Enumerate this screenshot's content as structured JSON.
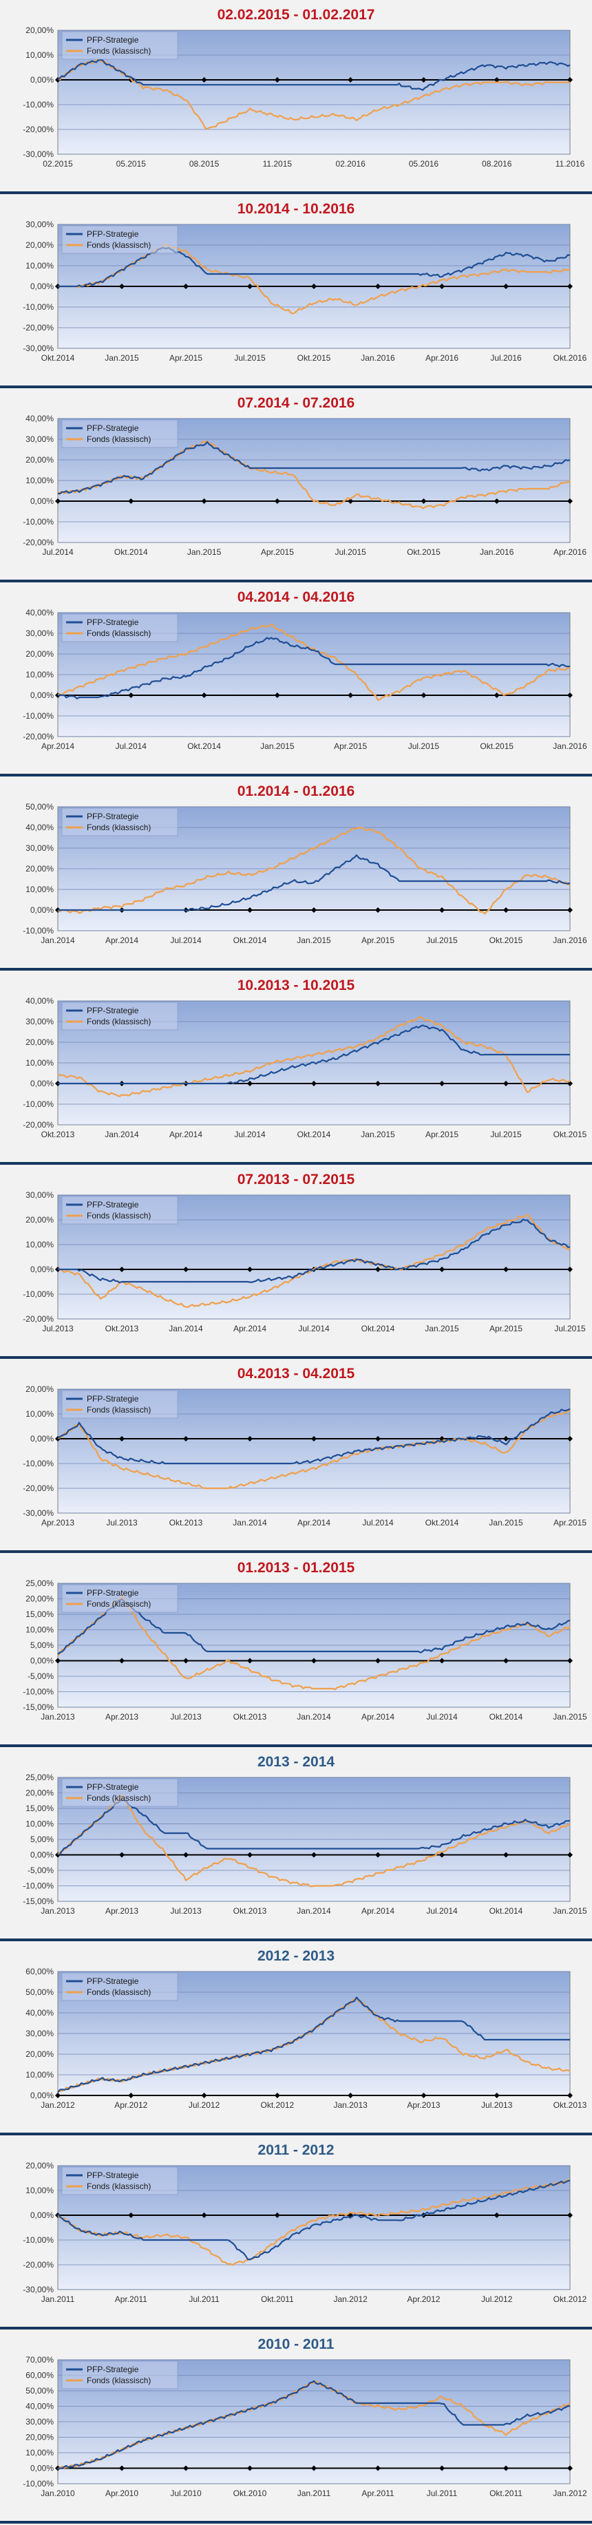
{
  "colors": {
    "strategy": "#1f4e94",
    "fund": "#f0a04b",
    "title_red": "#c0171e",
    "title_blue": "#2e5a88",
    "plot_top": "#8fa8d8",
    "plot_bottom": "#e9eef9",
    "divider": "#17375e"
  },
  "legend": {
    "strategy": "PFP-Strategie",
    "fund": "Fonds (klassisch)"
  },
  "chart_data": [
    {
      "type": "line",
      "title": "02.02.2015 - 01.02.2017",
      "title_color": "red",
      "ylim": [
        -30,
        20
      ],
      "yticks": [
        "20,00%",
        "10,00%",
        "0,00%",
        "-10,00%",
        "-20,00%",
        "-30,00%"
      ],
      "xticks": [
        "02.2015",
        "05.2015",
        "08.2015",
        "11.2015",
        "02.2016",
        "05.2016",
        "08.2016",
        "11.2016"
      ],
      "series": [
        {
          "name": "PFP-Strategie",
          "values": [
            0,
            6,
            8,
            3,
            -2,
            -2,
            -2,
            -2,
            -2,
            -2,
            -2,
            -2,
            -2,
            -2,
            -2,
            -2,
            -2,
            -4,
            0,
            3,
            6,
            5,
            6,
            7,
            6
          ]
        },
        {
          "name": "Fonds (klassisch)",
          "values": [
            0,
            6,
            8,
            3,
            -3,
            -4,
            -8,
            -20,
            -16,
            -12,
            -14,
            -16,
            -15,
            -14,
            -16,
            -12,
            -10,
            -7,
            -4,
            -2,
            -1,
            -1,
            -2,
            -1,
            -1
          ]
        }
      ]
    },
    {
      "type": "line",
      "title": "10.2014 - 10.2016",
      "title_color": "red",
      "ylim": [
        -30,
        30
      ],
      "yticks": [
        "30,00%",
        "20,00%",
        "10,00%",
        "0,00%",
        "-10,00%",
        "-20,00%",
        "-30,00%"
      ],
      "xticks": [
        "Okt.2014",
        "Jan.2015",
        "Apr.2015",
        "Jul.2015",
        "Okt.2015",
        "Jan.2016",
        "Apr.2016",
        "Jul.2016",
        "Okt.2016"
      ],
      "series": [
        {
          "name": "PFP-Strategie",
          "values": [
            0,
            0,
            2,
            8,
            14,
            19,
            15,
            6,
            6,
            6,
            6,
            6,
            6,
            6,
            6,
            6,
            6,
            6,
            5,
            8,
            12,
            16,
            15,
            12,
            15
          ]
        },
        {
          "name": "Fonds (klassisch)",
          "values": [
            0,
            0,
            2,
            8,
            14,
            20,
            17,
            8,
            6,
            4,
            -8,
            -13,
            -8,
            -6,
            -9,
            -5,
            -2,
            0,
            3,
            5,
            6,
            8,
            7,
            7,
            8
          ]
        }
      ]
    },
    {
      "type": "line",
      "title": "07.2014 - 07.2016",
      "title_color": "red",
      "ylim": [
        -20,
        40
      ],
      "yticks": [
        "40,00%",
        "30,00%",
        "20,00%",
        "10,00%",
        "0,00%",
        "-10,00%",
        "-20,00%"
      ],
      "xticks": [
        "Jul.2014",
        "Okt.2014",
        "Jan.2015",
        "Apr.2015",
        "Jul.2015",
        "Okt.2015",
        "Jan.2016",
        "Apr.2016"
      ],
      "series": [
        {
          "name": "PFP-Strategie",
          "values": [
            4,
            5,
            8,
            12,
            11,
            18,
            25,
            28,
            22,
            16,
            16,
            16,
            16,
            16,
            16,
            16,
            16,
            16,
            16,
            16,
            15,
            17,
            16,
            17,
            20
          ]
        },
        {
          "name": "Fonds (klassisch)",
          "values": [
            4,
            5,
            8,
            12,
            11,
            18,
            25,
            29,
            22,
            16,
            14,
            13,
            0,
            -2,
            3,
            1,
            -1,
            -3,
            -2,
            2,
            3,
            5,
            6,
            6,
            10
          ]
        }
      ]
    },
    {
      "type": "line",
      "title": "04.2014 - 04.2016",
      "title_color": "red",
      "ylim": [
        -20,
        40
      ],
      "yticks": [
        "40,00%",
        "30,00%",
        "20,00%",
        "10,00%",
        "0,00%",
        "-10,00%",
        "-20,00%"
      ],
      "xticks": [
        "Apr.2014",
        "Jul.2014",
        "Okt.2014",
        "Jan.2015",
        "Apr.2015",
        "Jul.2015",
        "Okt.2015",
        "Jan.2016"
      ],
      "series": [
        {
          "name": "PFP-Strategie",
          "values": [
            0,
            -1,
            -1,
            2,
            5,
            8,
            9,
            14,
            18,
            24,
            28,
            24,
            22,
            15,
            15,
            15,
            15,
            15,
            15,
            15,
            15,
            15,
            15,
            15,
            14
          ]
        },
        {
          "name": "Fonds (klassisch)",
          "values": [
            0,
            4,
            8,
            12,
            15,
            18,
            20,
            24,
            28,
            32,
            34,
            28,
            22,
            18,
            10,
            -2,
            2,
            8,
            10,
            12,
            6,
            0,
            5,
            12,
            13
          ]
        }
      ]
    },
    {
      "type": "line",
      "title": "01.2014 - 01.2016",
      "title_color": "red",
      "ylim": [
        -10,
        50
      ],
      "yticks": [
        "50,00%",
        "40,00%",
        "30,00%",
        "20,00%",
        "10,00%",
        "0,00%",
        "-10,00%"
      ],
      "xticks": [
        "Jan.2014",
        "Apr.2014",
        "Jul.2014",
        "Okt.2014",
        "Jan.2015",
        "Apr.2015",
        "Jul.2015",
        "Okt.2015",
        "Jan.2016"
      ],
      "series": [
        {
          "name": "PFP-Strategie",
          "values": [
            0,
            0,
            0,
            0,
            0,
            0,
            0,
            1,
            3,
            6,
            10,
            14,
            13,
            20,
            26,
            22,
            14,
            14,
            14,
            14,
            14,
            14,
            14,
            14,
            13
          ]
        },
        {
          "name": "Fonds (klassisch)",
          "values": [
            0,
            -1,
            1,
            2,
            5,
            10,
            12,
            16,
            18,
            17,
            20,
            25,
            30,
            35,
            40,
            38,
            30,
            20,
            16,
            6,
            -2,
            10,
            17,
            16,
            12
          ]
        }
      ]
    },
    {
      "type": "line",
      "title": "10.2013 - 10.2015",
      "title_color": "red",
      "ylim": [
        -20,
        40
      ],
      "yticks": [
        "40,00%",
        "30,00%",
        "20,00%",
        "10,00%",
        "0,00%",
        "-10,00%",
        "-20,00%"
      ],
      "xticks": [
        "Okt.2013",
        "Jan.2014",
        "Apr.2014",
        "Jul.2014",
        "Okt.2014",
        "Jan.2015",
        "Apr.2015",
        "Jul.2015",
        "Okt.2015"
      ],
      "series": [
        {
          "name": "PFP-Strategie",
          "values": [
            0,
            0,
            0,
            0,
            0,
            0,
            0,
            0,
            0,
            2,
            5,
            8,
            10,
            12,
            16,
            20,
            24,
            28,
            26,
            16,
            14,
            14,
            14,
            14,
            14
          ]
        },
        {
          "name": "Fonds (klassisch)",
          "values": [
            4,
            3,
            -4,
            -6,
            -4,
            -2,
            0,
            2,
            4,
            6,
            10,
            12,
            14,
            16,
            18,
            22,
            28,
            32,
            28,
            20,
            18,
            14,
            -4,
            2,
            1
          ]
        }
      ]
    },
    {
      "type": "line",
      "title": "07.2013 - 07.2015",
      "title_color": "red",
      "ylim": [
        -20,
        30
      ],
      "yticks": [
        "30,00%",
        "20,00%",
        "10,00%",
        "0,00%",
        "-10,00%",
        "-20,00%"
      ],
      "xticks": [
        "Jul.2013",
        "Okt.2013",
        "Jan.2014",
        "Apr.2014",
        "Jul.2014",
        "Okt.2014",
        "Jan.2015",
        "Apr.2015",
        "Jul.2015"
      ],
      "series": [
        {
          "name": "PFP-Strategie",
          "values": [
            0,
            0,
            -4,
            -5,
            -5,
            -5,
            -5,
            -5,
            -5,
            -5,
            -4,
            -3,
            0,
            2,
            4,
            2,
            0,
            2,
            4,
            8,
            14,
            18,
            20,
            12,
            9
          ]
        },
        {
          "name": "Fonds (klassisch)",
          "values": [
            0,
            -2,
            -12,
            -5,
            -8,
            -12,
            -15,
            -14,
            -13,
            -11,
            -8,
            -4,
            0,
            3,
            4,
            2,
            0,
            3,
            6,
            10,
            16,
            19,
            22,
            12,
            8
          ]
        }
      ]
    },
    {
      "type": "line",
      "title": "04.2013 - 04.2015",
      "title_color": "red",
      "ylim": [
        -30,
        20
      ],
      "yticks": [
        "20,00%",
        "10,00%",
        "0,00%",
        "-10,00%",
        "-20,00%",
        "-30,00%"
      ],
      "xticks": [
        "Apr.2013",
        "Jul.2013",
        "Okt.2013",
        "Jan.2014",
        "Apr.2014",
        "Jul.2014",
        "Okt.2014",
        "Jan.2015",
        "Apr.2015"
      ],
      "series": [
        {
          "name": "PFP-Strategie",
          "values": [
            0,
            6,
            -4,
            -8,
            -9,
            -10,
            -10,
            -10,
            -10,
            -10,
            -10,
            -10,
            -9,
            -7,
            -5,
            -4,
            -3,
            -2,
            -1,
            0,
            1,
            -2,
            4,
            10,
            12
          ]
        },
        {
          "name": "Fonds (klassisch)",
          "values": [
            0,
            6,
            -8,
            -12,
            -14,
            -16,
            -18,
            -20,
            -20,
            -18,
            -16,
            -14,
            -12,
            -9,
            -6,
            -4,
            -3,
            -2,
            -1,
            0,
            -2,
            -6,
            4,
            9,
            11
          ]
        }
      ]
    },
    {
      "type": "line",
      "title": "01.2013 - 01.2015",
      "title_color": "red",
      "ylim": [
        -15,
        25
      ],
      "yticks": [
        "25,00%",
        "20,00%",
        "15,00%",
        "10,00%",
        "5,00%",
        "0,00%",
        "-5,00%",
        "-10,00%",
        "-15,00%"
      ],
      "xticks": [
        "Jan.2013",
        "Apr.2013",
        "Jul.2013",
        "Okt.2013",
        "Jan.2014",
        "Apr.2014",
        "Jul.2014",
        "Okt.2014",
        "Jan.2015"
      ],
      "series": [
        {
          "name": "PFP-Strategie",
          "values": [
            2,
            8,
            14,
            20,
            14,
            9,
            9,
            3,
            3,
            3,
            3,
            3,
            3,
            3,
            3,
            3,
            3,
            3,
            4,
            7,
            9,
            11,
            12,
            10,
            13
          ]
        },
        {
          "name": "Fonds (klassisch)",
          "values": [
            2,
            8,
            14,
            21,
            10,
            2,
            -6,
            -3,
            0,
            -3,
            -6,
            -8,
            -9,
            -9,
            -7,
            -5,
            -3,
            -1,
            2,
            5,
            8,
            10,
            12,
            8,
            11
          ]
        }
      ]
    },
    {
      "type": "line",
      "title": "2013 - 2014",
      "title_color": "blue",
      "ylim": [
        -15,
        25
      ],
      "yticks": [
        "25,00%",
        "20,00%",
        "15,00%",
        "10,00%",
        "5,00%",
        "0,00%",
        "-5,00%",
        "-10,00%",
        "-15,00%"
      ],
      "xticks": [
        "Jan.2013",
        "Apr.2013",
        "Jul.2013",
        "Okt.2013",
        "Jan.2014",
        "Apr.2014",
        "Jul.2014",
        "Okt.2014",
        "Jan.2015"
      ],
      "series": [
        {
          "name": "PFP-Strategie",
          "values": [
            0,
            6,
            12,
            18,
            13,
            7,
            7,
            2,
            2,
            2,
            2,
            2,
            2,
            2,
            2,
            2,
            2,
            2,
            3,
            6,
            8,
            10,
            11,
            9,
            11
          ]
        },
        {
          "name": "Fonds (klassisch)",
          "values": [
            0,
            6,
            12,
            19,
            8,
            1,
            -8,
            -4,
            -1,
            -4,
            -7,
            -9,
            -10,
            -10,
            -8,
            -6,
            -4,
            -2,
            1,
            4,
            7,
            9,
            11,
            7,
            10
          ]
        }
      ]
    },
    {
      "type": "line",
      "title": "2012 - 2013",
      "title_color": "blue",
      "ylim": [
        0,
        60
      ],
      "yticks": [
        "60,00%",
        "50,00%",
        "40,00%",
        "30,00%",
        "20,00%",
        "10,00%",
        "0,00%"
      ],
      "xticks": [
        "Jan.2012",
        "Apr.2012",
        "Jul.2012",
        "Okt.2012",
        "Jan.2013",
        "Apr.2013",
        "Jul.2013",
        "Okt.2013"
      ],
      "series": [
        {
          "name": "PFP-Strategie",
          "values": [
            2,
            5,
            8,
            7,
            10,
            12,
            14,
            16,
            18,
            20,
            22,
            26,
            32,
            40,
            47,
            38,
            36,
            36,
            36,
            36,
            27,
            27,
            27,
            27,
            27
          ]
        },
        {
          "name": "Fonds (klassisch)",
          "values": [
            2,
            5,
            8,
            7,
            10,
            12,
            14,
            16,
            18,
            20,
            22,
            26,
            32,
            40,
            47,
            38,
            30,
            26,
            28,
            20,
            18,
            22,
            16,
            13,
            12
          ]
        }
      ]
    },
    {
      "type": "line",
      "title": "2011 - 2012",
      "title_color": "blue",
      "ylim": [
        -30,
        20
      ],
      "yticks": [
        "20,00%",
        "10,00%",
        "0,00%",
        "-10,00%",
        "-20,00%",
        "-30,00%"
      ],
      "xticks": [
        "Jan.2011",
        "Apr.2011",
        "Jul.2011",
        "Okt.2011",
        "Jan.2012",
        "Apr.2012",
        "Jul.2012",
        "Okt.2012"
      ],
      "series": [
        {
          "name": "PFP-Strategie",
          "values": [
            0,
            -6,
            -8,
            -7,
            -10,
            -10,
            -10,
            -10,
            -10,
            -18,
            -14,
            -8,
            -4,
            -2,
            0,
            -2,
            -2,
            0,
            2,
            4,
            6,
            8,
            10,
            12,
            14
          ]
        },
        {
          "name": "Fonds (klassisch)",
          "values": [
            0,
            -6,
            -8,
            -7,
            -9,
            -8,
            -9,
            -14,
            -20,
            -18,
            -12,
            -6,
            -2,
            0,
            1,
            0,
            1,
            2,
            4,
            6,
            7,
            9,
            11,
            12,
            14
          ]
        }
      ]
    },
    {
      "type": "line",
      "title": "2010 - 2011",
      "title_color": "blue",
      "ylim": [
        -10,
        70
      ],
      "yticks": [
        "70,00%",
        "60,00%",
        "50,00%",
        "40,00%",
        "30,00%",
        "20,00%",
        "10,00%",
        "0,00%",
        "-10,00%"
      ],
      "xticks": [
        "Jan.2010",
        "Apr.2010",
        "Jul.2010",
        "Okt.2010",
        "Jan.2011",
        "Apr.2011",
        "Jul.2011",
        "Okt.2011",
        "Jan.2012"
      ],
      "series": [
        {
          "name": "PFP-Strategie",
          "values": [
            0,
            2,
            6,
            12,
            18,
            22,
            26,
            30,
            34,
            38,
            42,
            48,
            56,
            50,
            42,
            42,
            42,
            42,
            42,
            28,
            28,
            28,
            34,
            36,
            40
          ]
        },
        {
          "name": "Fonds (klassisch)",
          "values": [
            0,
            2,
            6,
            12,
            18,
            22,
            26,
            30,
            34,
            38,
            42,
            48,
            56,
            50,
            42,
            40,
            38,
            40,
            46,
            40,
            28,
            22,
            30,
            36,
            42
          ]
        }
      ]
    }
  ]
}
